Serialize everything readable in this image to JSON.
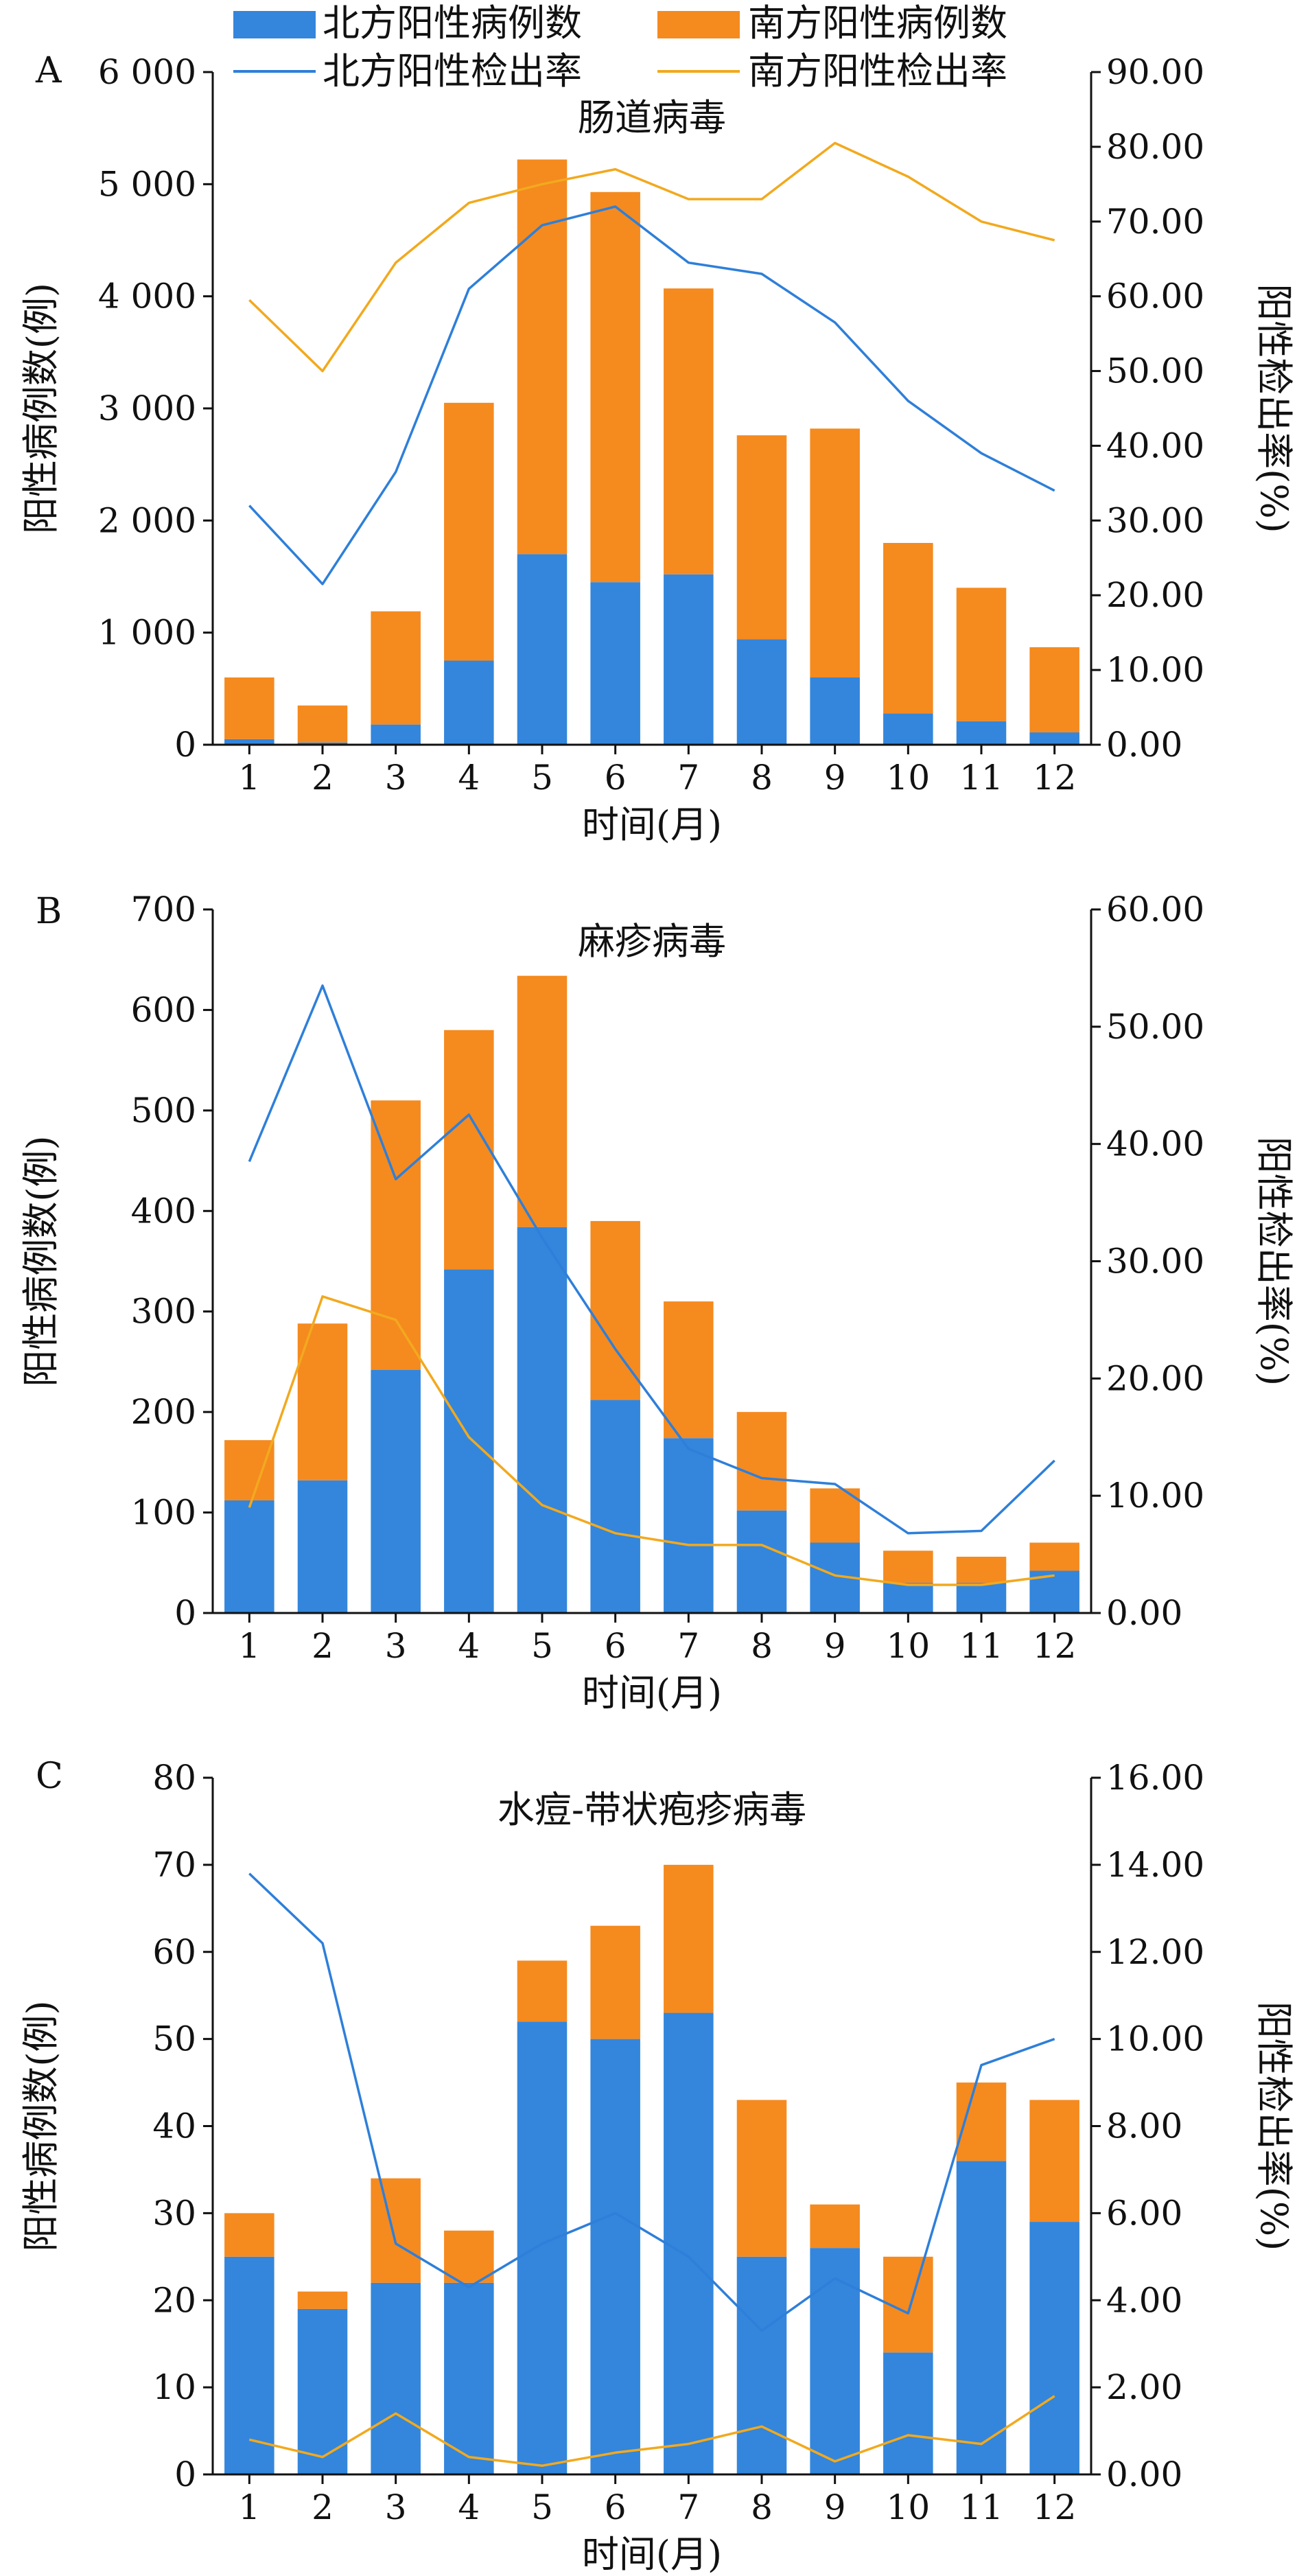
{
  "legend": {
    "north_cases": "北方阳性病例数",
    "south_cases": "南方阳性病例数",
    "north_rate": "北方阳性检出率",
    "south_rate": "南方阳性检出率"
  },
  "colors": {
    "north_bar": "#3386DB",
    "south_bar": "#F58A1F",
    "north_line": "#2E7FD9",
    "south_line": "#F2A91E"
  },
  "chart_data": [
    {
      "panel": "A",
      "type": "bar",
      "stacked": true,
      "title": "肠道病毒",
      "xlabel": "时间(月)",
      "ylabel": "阳性病例数(例)",
      "ylabel_right": "阳性检出率(%)",
      "categories": [
        "1",
        "2",
        "3",
        "4",
        "5",
        "6",
        "7",
        "8",
        "9",
        "10",
        "11",
        "12"
      ],
      "ylim": [
        0,
        6000
      ],
      "y_ticks": [
        "0",
        "1 000",
        "2 000",
        "3 000",
        "4 000",
        "5 000",
        "6 000"
      ],
      "y2lim": [
        0,
        90
      ],
      "y2_ticks": [
        "0.00",
        "10.00",
        "20.00",
        "30.00",
        "40.00",
        "50.00",
        "60.00",
        "70.00",
        "80.00",
        "90.00"
      ],
      "series": [
        {
          "name": "北方阳性病例数",
          "kind": "bar",
          "values": [
            50,
            20,
            180,
            750,
            1700,
            1450,
            1520,
            940,
            600,
            280,
            210,
            110
          ]
        },
        {
          "name": "南方阳性病例数",
          "kind": "bar",
          "values": [
            550,
            330,
            1010,
            2300,
            3520,
            3480,
            2550,
            1820,
            2220,
            1520,
            1190,
            760
          ]
        },
        {
          "name": "北方阳性检出率",
          "kind": "line",
          "values": [
            32.0,
            21.5,
            36.5,
            61.0,
            69.5,
            72.0,
            64.5,
            63.0,
            56.5,
            46.0,
            39.0,
            34.0
          ]
        },
        {
          "name": "南方阳性检出率",
          "kind": "line",
          "values": [
            59.5,
            50.0,
            64.5,
            72.5,
            75.0,
            77.0,
            73.0,
            73.0,
            80.5,
            76.0,
            70.0,
            67.5
          ]
        }
      ]
    },
    {
      "panel": "B",
      "type": "bar",
      "stacked": true,
      "title": "麻疹病毒",
      "xlabel": "时间(月)",
      "ylabel": "阳性病例数(例)",
      "ylabel_right": "阳性检出率(%)",
      "categories": [
        "1",
        "2",
        "3",
        "4",
        "5",
        "6",
        "7",
        "8",
        "9",
        "10",
        "11",
        "12"
      ],
      "ylim": [
        0,
        700
      ],
      "y_ticks": [
        "0",
        "100",
        "200",
        "300",
        "400",
        "500",
        "600",
        "700"
      ],
      "y2lim": [
        0,
        60
      ],
      "y2_ticks": [
        "0.00",
        "10.00",
        "20.00",
        "30.00",
        "40.00",
        "50.00",
        "60.00"
      ],
      "series": [
        {
          "name": "北方阳性病例数",
          "kind": "bar",
          "values": [
            112,
            132,
            242,
            342,
            384,
            212,
            174,
            102,
            70,
            30,
            30,
            42
          ]
        },
        {
          "name": "南方阳性病例数",
          "kind": "bar",
          "values": [
            60,
            156,
            268,
            238,
            250,
            178,
            136,
            98,
            54,
            32,
            26,
            28
          ]
        },
        {
          "name": "北方阳性检出率",
          "kind": "line",
          "values": [
            38.5,
            53.5,
            37.0,
            42.5,
            32.0,
            22.5,
            14.0,
            11.5,
            11.0,
            6.8,
            7.0,
            13.0
          ]
        },
        {
          "name": "南方阳性检出率",
          "kind": "line",
          "values": [
            9.0,
            27.0,
            25.0,
            15.0,
            9.2,
            6.8,
            5.8,
            5.8,
            3.2,
            2.4,
            2.4,
            3.2
          ]
        }
      ]
    },
    {
      "panel": "C",
      "type": "bar",
      "stacked": true,
      "title": "水痘-带状疱疹病毒",
      "xlabel": "时间(月)",
      "ylabel": "阳性病例数(例)",
      "ylabel_right": "阳性检出率(%)",
      "categories": [
        "1",
        "2",
        "3",
        "4",
        "5",
        "6",
        "7",
        "8",
        "9",
        "10",
        "11",
        "12"
      ],
      "ylim": [
        0,
        80
      ],
      "y_ticks": [
        "0",
        "10",
        "20",
        "30",
        "40",
        "50",
        "60",
        "70",
        "80"
      ],
      "y2lim": [
        0,
        16
      ],
      "y2_ticks": [
        "0.00",
        "2.00",
        "4.00",
        "6.00",
        "8.00",
        "10.00",
        "12.00",
        "14.00",
        "16.00"
      ],
      "series": [
        {
          "name": "北方阳性病例数",
          "kind": "bar",
          "values": [
            25,
            19,
            22,
            22,
            52,
            50,
            53,
            25,
            26,
            14,
            36,
            29
          ]
        },
        {
          "name": "南方阳性病例数",
          "kind": "bar",
          "values": [
            5,
            2,
            12,
            6,
            7,
            13,
            17,
            18,
            5,
            11,
            9,
            14
          ]
        },
        {
          "name": "北方阳性检出率",
          "kind": "line",
          "values": [
            13.8,
            12.2,
            5.3,
            4.3,
            5.3,
            6.0,
            5.0,
            3.3,
            4.5,
            3.7,
            9.4,
            10.0
          ]
        },
        {
          "name": "南方阳性检出率",
          "kind": "line",
          "values": [
            0.8,
            0.4,
            1.4,
            0.4,
            0.2,
            0.5,
            0.7,
            1.1,
            0.3,
            0.9,
            0.7,
            1.8
          ]
        }
      ]
    }
  ]
}
